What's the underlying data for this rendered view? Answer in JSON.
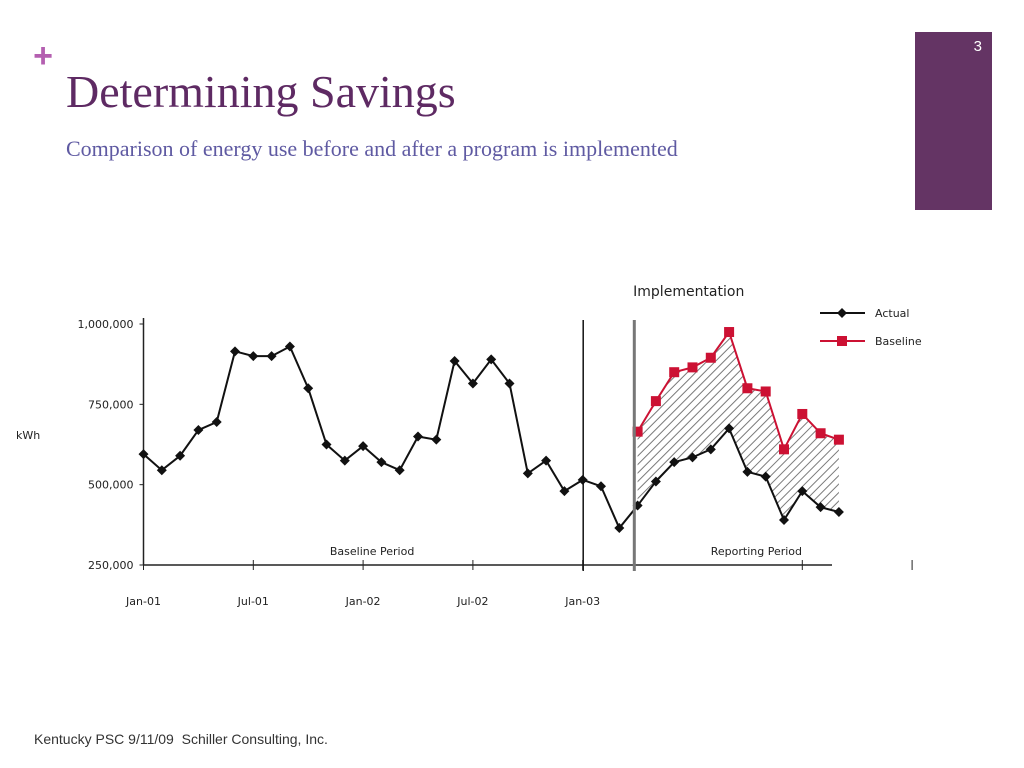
{
  "slide": {
    "plus_glyph": "+",
    "title": "Determining Savings",
    "subtitle": "Comparison of energy use before and after a program is implemented",
    "slide_number": "3",
    "footer": "Kentucky PSC 9/11/09  Schiller Consulting, Inc.",
    "colors": {
      "title": "#5e2a63",
      "subtitle": "#5f5aa2",
      "accent": "#b45fb0",
      "badge": "#643464"
    }
  },
  "chart_data": {
    "type": "line",
    "title": "",
    "xlabel": "",
    "ylabel": "kWh",
    "ylim": [
      250000,
      1000000
    ],
    "yticks": [
      {
        "value": 1000000,
        "label": "1,000,000"
      },
      {
        "value": 750000,
        "label": "750,000"
      },
      {
        "value": 500000,
        "label": "500,000"
      },
      {
        "value": 250000,
        "label": "250,000"
      }
    ],
    "x_tick_labels": [
      "Jan-01",
      "Jul-01",
      "Jan-02",
      "Jul-02",
      "Jan-03"
    ],
    "annotations": {
      "implementation": "Implementation",
      "baseline_period": "Baseline Period",
      "reporting_period": "Reporting Period"
    },
    "legend_position": "top-right",
    "grid": false,
    "series": [
      {
        "name": "Actual",
        "color": "#111111",
        "marker": "diamond",
        "values": [
          595000,
          545000,
          590000,
          670000,
          695000,
          915000,
          900000,
          900000,
          930000,
          800000,
          625000,
          575000,
          620000,
          570000,
          545000,
          650000,
          640000,
          885000,
          815000,
          890000,
          815000,
          535000,
          575000,
          480000,
          515000,
          495000,
          365000,
          435000,
          510000,
          570000,
          585000,
          610000,
          675000,
          540000,
          525000,
          390000,
          480000,
          430000,
          415000
        ]
      },
      {
        "name": "Baseline",
        "color": "#cc1133",
        "marker": "square",
        "start_index": 27,
        "values": [
          665000,
          760000,
          850000,
          865000,
          895000,
          975000,
          800000,
          790000,
          610000,
          720000,
          660000,
          640000
        ]
      }
    ]
  }
}
